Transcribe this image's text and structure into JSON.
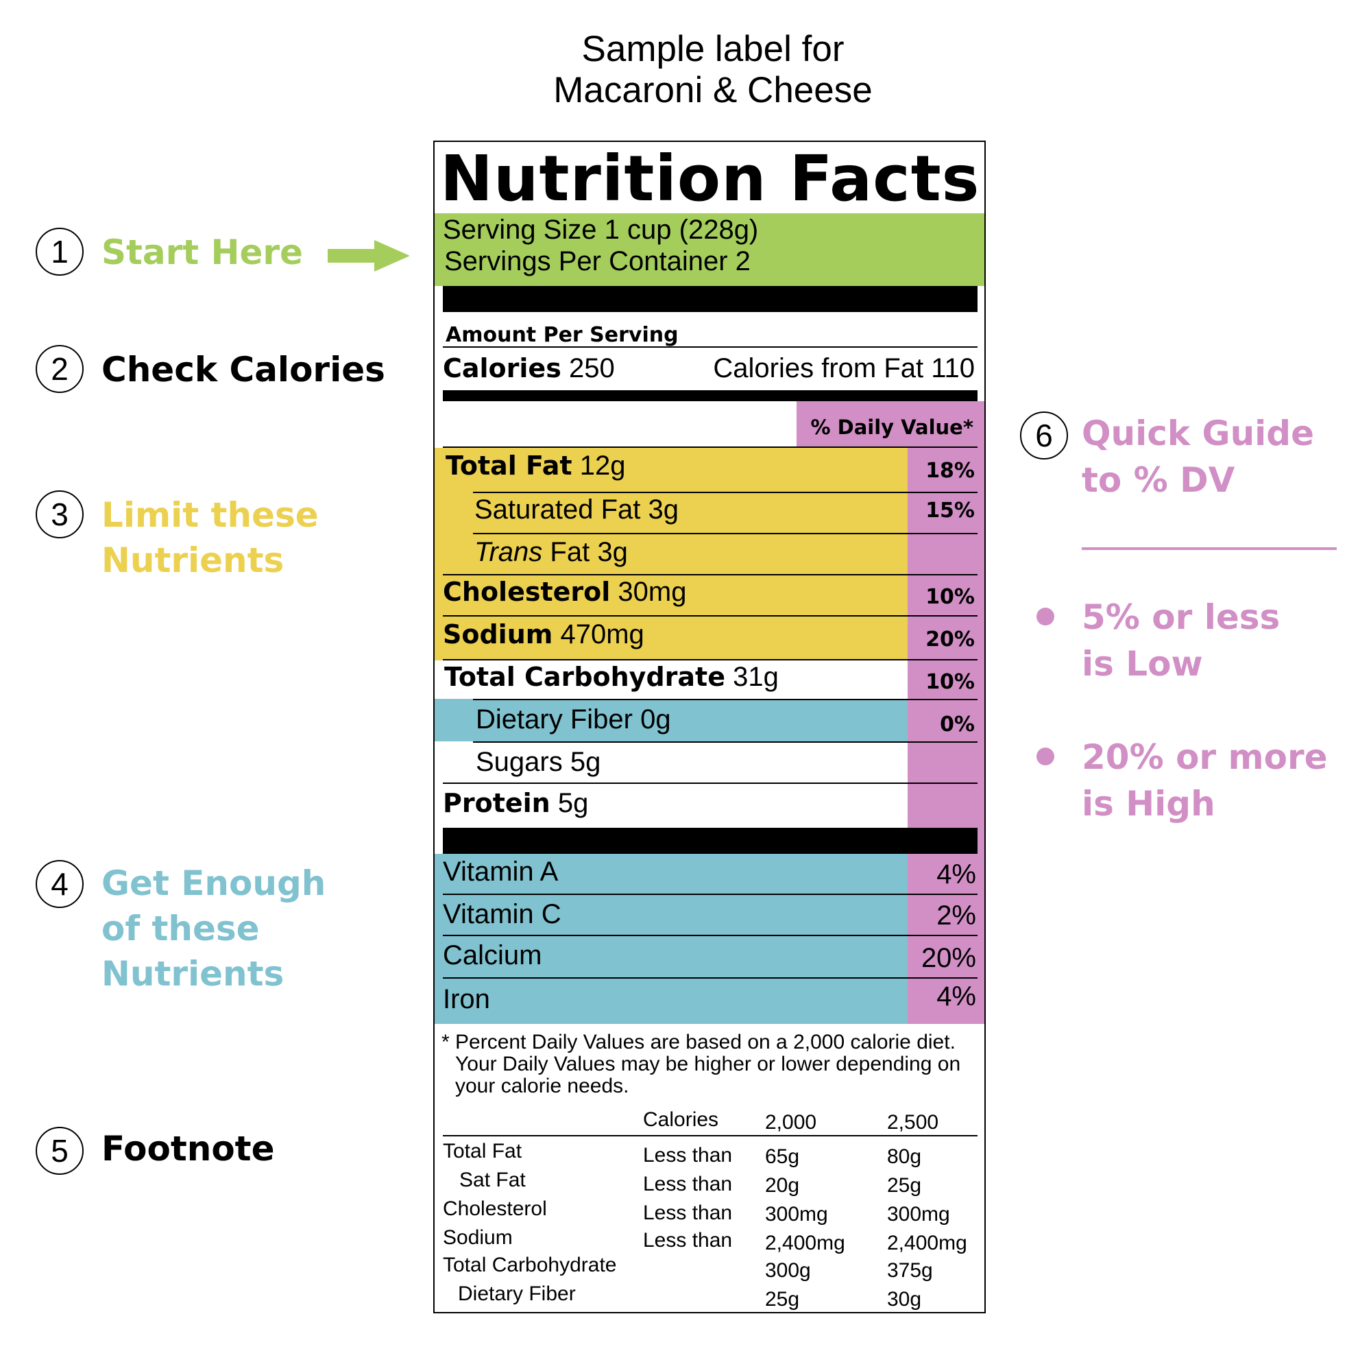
{
  "sample_title": [
    "Sample label for",
    "Macaroni & Cheese"
  ],
  "steps": [
    {
      "number": "1",
      "lines": [
        "Start Here"
      ]
    },
    {
      "number": "2",
      "lines": [
        "Check Calories"
      ]
    },
    {
      "number": "3",
      "lines": [
        "Limit these",
        "Nutrients"
      ]
    },
    {
      "number": "4",
      "lines": [
        "Get Enough",
        "of these",
        "Nutrients"
      ]
    },
    {
      "number": "5",
      "lines": [
        "Footnote"
      ]
    },
    {
      "number": "6",
      "lines": [
        "Quick Guide",
        "to % DV"
      ]
    }
  ],
  "quick_guide": [
    {
      "lines": [
        "5% or less",
        "is Low"
      ]
    },
    {
      "lines": [
        "20% or more",
        "is High"
      ]
    }
  ],
  "label": {
    "title": "Nutrition Facts",
    "serving_size": "Serving Size 1 cup (228g)",
    "servings_per_container": "Servings Per Container 2",
    "amount_per_serving": "Amount Per Serving",
    "calories_label": "Calories",
    "calories_value": "250",
    "calories_from_fat": "Calories from Fat 110",
    "daily_value_header": "% Daily Value*",
    "nutrients": [
      {
        "name": "Total Fat",
        "amount": "12g",
        "dv": "18%"
      },
      {
        "name": "Saturated Fat",
        "amount": "3g",
        "dv": "15%"
      },
      {
        "name": "Trans",
        "name_rest": "Fat",
        "amount": "3g",
        "dv": ""
      },
      {
        "name": "Cholesterol",
        "amount": "30mg",
        "dv": "10%"
      },
      {
        "name": "Sodium",
        "amount": "470mg",
        "dv": "20%"
      },
      {
        "name": "Total Carbohydrate",
        "amount": "31g",
        "dv": "10%"
      },
      {
        "name": "Dietary Fiber",
        "amount": "0g",
        "dv": "0%"
      },
      {
        "name": "Sugars",
        "amount": "5g",
        "dv": ""
      },
      {
        "name": "Protein",
        "amount": "5g",
        "dv": ""
      }
    ],
    "vitamins": [
      {
        "name": "Vitamin A",
        "dv": "4%"
      },
      {
        "name": "Vitamin C",
        "dv": "2%"
      },
      {
        "name": "Calcium",
        "dv": "20%"
      },
      {
        "name": "Iron",
        "dv": "4%"
      }
    ],
    "footnote": [
      "* Percent Daily Values are based on a 2,000 calorie diet.",
      "Your Daily Values may be higher or lower depending on",
      "your calorie needs."
    ],
    "footnote_table": {
      "header": [
        "Calories",
        "2,000",
        "2,500"
      ],
      "rows": [
        [
          "Total Fat",
          "Less than",
          "65g",
          "80g"
        ],
        [
          "Sat Fat",
          "Less than",
          "20g",
          "25g"
        ],
        [
          "Cholesterol",
          "Less than",
          "300mg",
          "300mg"
        ],
        [
          "Sodium",
          "Less than",
          "2,400mg",
          "2,400mg"
        ],
        [
          "Total Carbohydrate",
          "",
          "300g",
          "375g"
        ],
        [
          "Dietary Fiber",
          "",
          "25g",
          "30g"
        ]
      ]
    }
  },
  "colors": {
    "green": "#a4cd5c",
    "yellow": "#ecd04f",
    "blue": "#80c2cf",
    "pink": "#d18fc5"
  }
}
